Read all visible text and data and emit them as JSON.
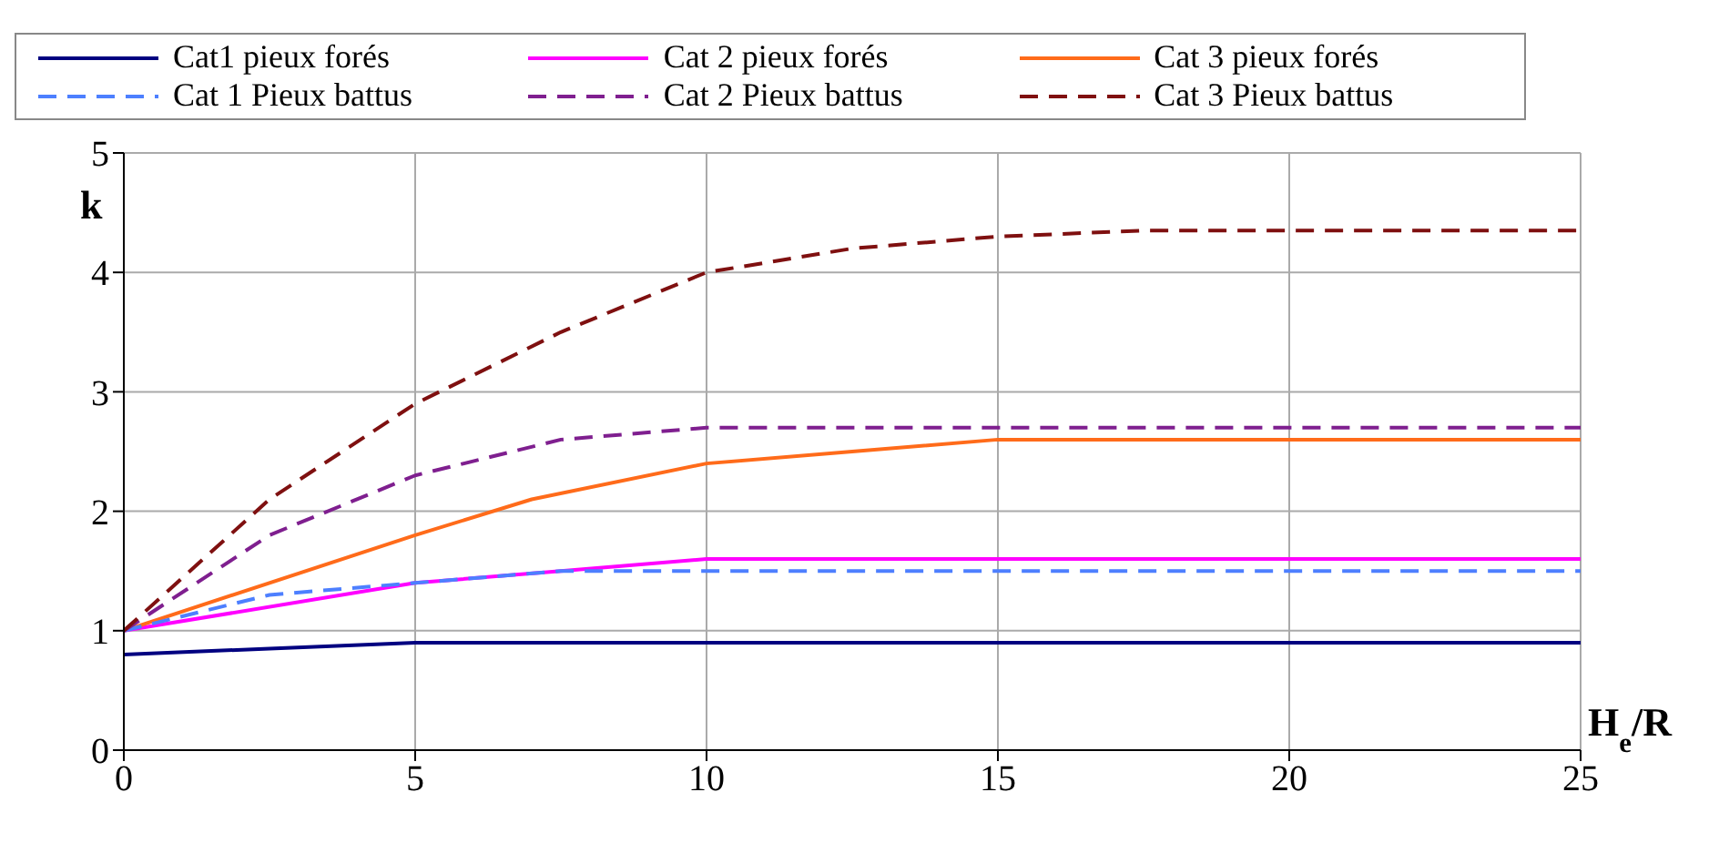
{
  "chart_data": {
    "type": "line",
    "xlabel": "H$_{e}$/R",
    "ylabel": "k",
    "xlim": [
      0,
      25
    ],
    "xticks": [
      0,
      5,
      10,
      15,
      20,
      25
    ],
    "ylim": [
      0,
      5
    ],
    "yticks": [
      0,
      1,
      2,
      3,
      4,
      5
    ],
    "grid": true,
    "legend": "top",
    "marker": "none",
    "series": [
      {
        "name": "Cat1 pieux forés",
        "color": "#000080",
        "line_style": "solid",
        "x": [
          0,
          2.5,
          5,
          25
        ],
        "values": [
          0.8,
          0.85,
          0.9,
          0.9
        ]
      },
      {
        "name": "Cat 2 pieux forés",
        "color": "#ff00ff",
        "line_style": "solid",
        "x": [
          0,
          5,
          7.5,
          10,
          11,
          25
        ],
        "values": [
          1.0,
          1.4,
          1.5,
          1.6,
          1.6,
          1.6
        ]
      },
      {
        "name": "Cat 3 pieux forés",
        "color": "#ff6b1a",
        "line_style": "solid",
        "x": [
          0,
          5,
          7,
          10,
          12.5,
          15,
          25
        ],
        "values": [
          1.0,
          1.8,
          2.1,
          2.4,
          2.5,
          2.6,
          2.6
        ]
      },
      {
        "name": "Cat 1 Pieux battus",
        "color": "#4d7fff",
        "line_style": "dashed",
        "x": [
          0,
          2.5,
          5,
          7.5,
          25
        ],
        "values": [
          1.0,
          1.3,
          1.4,
          1.5,
          1.5
        ]
      },
      {
        "name": "Cat 2 Pieux battus",
        "color": "#7f1f8f",
        "line_style": "dashed",
        "x": [
          0,
          2.5,
          5,
          7.5,
          10,
          25
        ],
        "values": [
          1.0,
          1.8,
          2.3,
          2.6,
          2.7,
          2.7
        ]
      },
      {
        "name": "Cat 3 Pieux battus",
        "color": "#7f1010",
        "line_style": "dashed",
        "x": [
          0,
          2.5,
          5,
          7.5,
          10,
          12.5,
          15,
          17.5,
          25
        ],
        "values": [
          1.0,
          2.1,
          2.9,
          3.5,
          4.0,
          4.2,
          4.3,
          4.35,
          4.35
        ]
      }
    ]
  }
}
